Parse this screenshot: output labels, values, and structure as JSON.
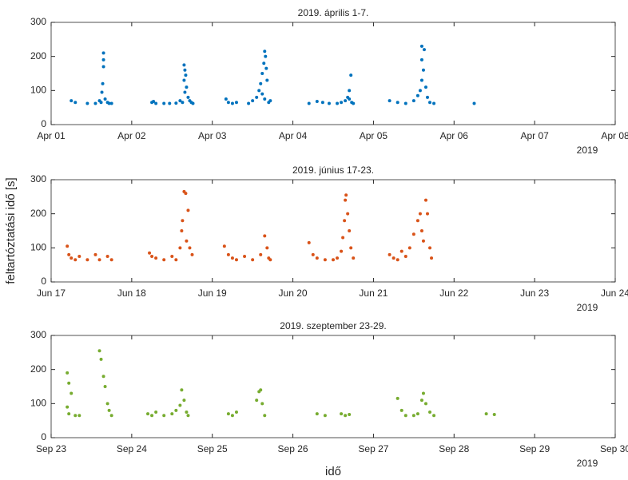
{
  "chart_data": [
    {
      "type": "scatter",
      "title": "2019. április 1-7.",
      "year_label": "2019",
      "color": "#0072BD",
      "x": [
        1.25,
        1.3,
        1.45,
        1.55,
        1.6,
        1.62,
        1.65,
        1.65,
        1.65,
        1.64,
        1.63,
        1.67,
        1.7,
        1.72,
        1.75,
        2.25,
        2.27,
        2.3,
        2.4,
        2.47,
        2.55,
        2.6,
        2.63,
        2.65,
        2.66,
        2.67,
        2.65,
        2.68,
        2.66,
        2.7,
        2.72,
        2.74,
        2.76,
        3.17,
        3.2,
        3.25,
        3.3,
        3.45,
        3.5,
        3.55,
        3.58,
        3.6,
        3.62,
        3.64,
        3.65,
        3.66,
        3.67,
        3.68,
        3.62,
        3.65,
        3.7,
        3.72,
        4.2,
        4.3,
        4.37,
        4.45,
        4.55,
        4.6,
        4.65,
        4.68,
        4.7,
        4.72,
        4.7,
        4.73,
        4.75,
        5.2,
        5.3,
        5.4,
        5.5,
        5.55,
        5.58,
        5.6,
        5.62,
        5.6,
        5.6,
        5.63,
        5.65,
        5.67,
        5.7,
        5.75,
        6.25
      ],
      "y": [
        70,
        65,
        62,
        62,
        70,
        65,
        210,
        190,
        170,
        120,
        95,
        75,
        65,
        62,
        62,
        65,
        68,
        62,
        62,
        62,
        63,
        70,
        65,
        175,
        160,
        145,
        130,
        110,
        95,
        80,
        70,
        65,
        62,
        75,
        65,
        62,
        65,
        62,
        70,
        80,
        100,
        120,
        150,
        180,
        215,
        200,
        165,
        130,
        90,
        75,
        65,
        70,
        62,
        68,
        65,
        62,
        62,
        65,
        70,
        80,
        100,
        145,
        75,
        65,
        62,
        70,
        65,
        62,
        70,
        85,
        100,
        130,
        160,
        190,
        230,
        220,
        110,
        80,
        65,
        62,
        62
      ],
      "xlim": [
        1,
        8
      ],
      "xticks": [
        {
          "value": 1,
          "label": "Apr 01"
        },
        {
          "value": 2,
          "label": "Apr 02"
        },
        {
          "value": 3,
          "label": "Apr 03"
        },
        {
          "value": 4,
          "label": "Apr 04"
        },
        {
          "value": 5,
          "label": "Apr 05"
        },
        {
          "value": 6,
          "label": "Apr 06"
        },
        {
          "value": 7,
          "label": "Apr 07"
        },
        {
          "value": 8,
          "label": "Apr 08"
        }
      ],
      "ylim": [
        0,
        300
      ],
      "yticks": [
        0,
        100,
        200,
        300
      ]
    },
    {
      "type": "scatter",
      "title": "2019. június 17-23.",
      "year_label": "2019",
      "color": "#D95319",
      "y_label": "feltartóztatási idő [s]",
      "x": [
        17.2,
        17.22,
        17.25,
        17.3,
        17.35,
        17.45,
        17.55,
        17.6,
        17.7,
        17.75,
        18.22,
        18.25,
        18.3,
        18.4,
        18.5,
        18.55,
        18.6,
        18.62,
        18.63,
        18.65,
        18.67,
        18.7,
        18.68,
        18.72,
        18.75,
        19.15,
        19.2,
        19.25,
        19.3,
        19.4,
        19.5,
        19.6,
        19.65,
        19.68,
        19.7,
        19.72,
        20.2,
        20.25,
        20.3,
        20.4,
        20.5,
        20.55,
        20.6,
        20.62,
        20.64,
        20.65,
        20.66,
        20.68,
        20.7,
        20.72,
        20.75,
        21.2,
        21.25,
        21.3,
        21.35,
        21.4,
        21.45,
        21.5,
        21.55,
        21.58,
        21.6,
        21.62,
        21.65,
        21.67,
        21.7,
        21.72
      ],
      "y": [
        105,
        80,
        70,
        65,
        75,
        65,
        80,
        65,
        75,
        65,
        85,
        75,
        70,
        65,
        75,
        65,
        100,
        150,
        180,
        265,
        260,
        210,
        120,
        100,
        80,
        105,
        80,
        70,
        65,
        75,
        65,
        80,
        135,
        100,
        70,
        65,
        115,
        80,
        70,
        65,
        65,
        70,
        90,
        130,
        180,
        240,
        255,
        200,
        150,
        100,
        70,
        80,
        70,
        65,
        90,
        75,
        100,
        140,
        180,
        200,
        150,
        120,
        240,
        200,
        100,
        70
      ],
      "xlim": [
        17,
        24
      ],
      "xticks": [
        {
          "value": 17,
          "label": "Jun 17"
        },
        {
          "value": 18,
          "label": "Jun 18"
        },
        {
          "value": 19,
          "label": "Jun 19"
        },
        {
          "value": 20,
          "label": "Jun 20"
        },
        {
          "value": 21,
          "label": "Jun 21"
        },
        {
          "value": 22,
          "label": "Jun 22"
        },
        {
          "value": 23,
          "label": "Jun 23"
        },
        {
          "value": 24,
          "label": "Jun 24"
        }
      ],
      "ylim": [
        0,
        300
      ],
      "yticks": [
        0,
        100,
        200,
        300
      ]
    },
    {
      "type": "scatter",
      "title": "2019. szeptember 23-29.",
      "year_label": "2019",
      "color": "#77AC30",
      "x_label": "idő",
      "x": [
        23.2,
        23.22,
        23.25,
        23.2,
        23.22,
        23.3,
        23.35,
        23.6,
        23.62,
        23.65,
        23.67,
        23.7,
        23.72,
        23.75,
        24.2,
        24.25,
        24.3,
        24.4,
        24.5,
        24.55,
        24.6,
        24.62,
        24.65,
        24.68,
        24.7,
        25.2,
        25.25,
        25.3,
        25.55,
        25.58,
        25.6,
        25.62,
        25.65,
        26.3,
        26.4,
        26.6,
        26.65,
        26.7,
        27.3,
        27.35,
        27.4,
        27.5,
        27.55,
        27.6,
        27.62,
        27.65,
        27.7,
        27.75,
        28.4,
        28.5
      ],
      "y": [
        190,
        160,
        130,
        90,
        70,
        65,
        65,
        255,
        230,
        180,
        150,
        100,
        80,
        65,
        70,
        65,
        75,
        65,
        70,
        80,
        95,
        140,
        110,
        75,
        65,
        70,
        65,
        75,
        110,
        135,
        140,
        100,
        65,
        70,
        65,
        70,
        65,
        68,
        115,
        80,
        65,
        65,
        70,
        110,
        130,
        100,
        75,
        65,
        70,
        68
      ],
      "xlim": [
        23,
        30
      ],
      "xticks": [
        {
          "value": 23,
          "label": "Sep 23"
        },
        {
          "value": 24,
          "label": "Sep 24"
        },
        {
          "value": 25,
          "label": "Sep 25"
        },
        {
          "value": 26,
          "label": "Sep 26"
        },
        {
          "value": 27,
          "label": "Sep 27"
        },
        {
          "value": 28,
          "label": "Sep 28"
        },
        {
          "value": 29,
          "label": "Sep 29"
        },
        {
          "value": 30,
          "label": "Sep 30"
        }
      ],
      "ylim": [
        0,
        300
      ],
      "yticks": [
        0,
        100,
        200,
        300
      ]
    }
  ]
}
